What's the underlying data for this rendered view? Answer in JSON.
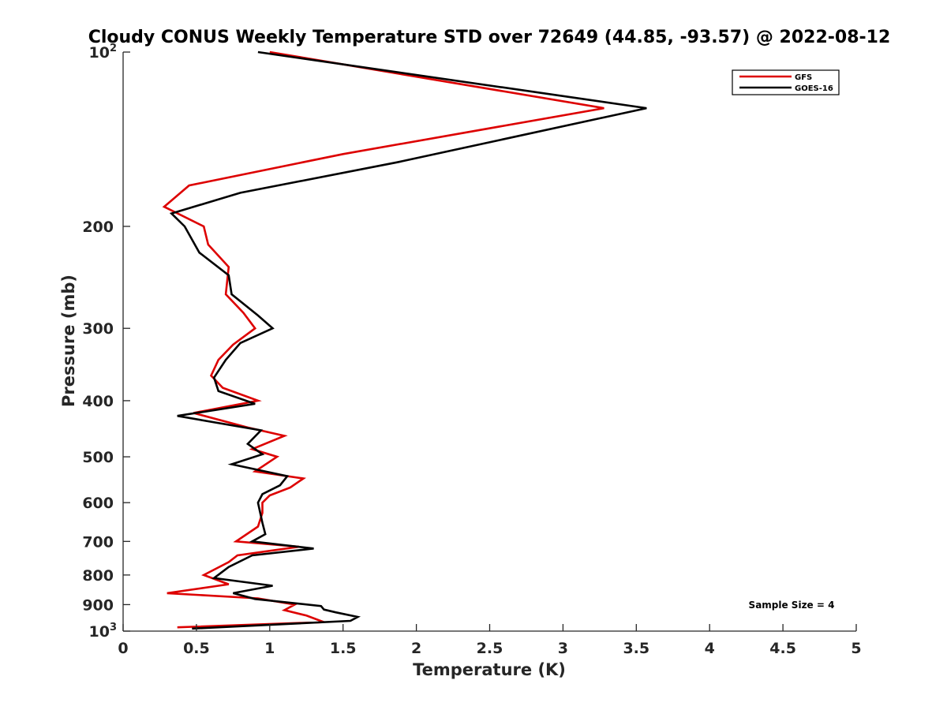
{
  "chart_data": {
    "type": "line",
    "title": "Cloudy CONUS Weekly Temperature STD over 72649 (44.85, -93.57) @ 2022-08-12",
    "xlabel": "Temperature (K)",
    "ylabel": "Pressure (mb)",
    "xlim": [
      0,
      5
    ],
    "ylim": [
      100,
      1000
    ],
    "y_scale": "log",
    "y_reversed": true,
    "x_ticks": [
      "0",
      "0.5",
      "1",
      "1.5",
      "2",
      "2.5",
      "3",
      "3.5",
      "4",
      "4.5",
      "5"
    ],
    "y_ticks": [
      {
        "value": 100,
        "base": "10",
        "exp": "2"
      },
      {
        "value": 200,
        "label": "200"
      },
      {
        "value": 300,
        "label": "300"
      },
      {
        "value": 400,
        "label": "400"
      },
      {
        "value": 500,
        "label": "500"
      },
      {
        "value": 600,
        "label": "600"
      },
      {
        "value": 700,
        "label": "700"
      },
      {
        "value": 800,
        "label": "800"
      },
      {
        "value": 900,
        "label": "900"
      },
      {
        "value": 1000,
        "base": "10",
        "exp": "3"
      }
    ],
    "legend_position": "top-right",
    "annotation": "Sample Size = 4",
    "series": [
      {
        "name": "GFS",
        "color": "#dd0000",
        "points": [
          [
            1.0,
            100
          ],
          [
            3.28,
            125
          ],
          [
            1.5,
            150
          ],
          [
            0.45,
            170
          ],
          [
            0.28,
            185
          ],
          [
            0.55,
            200
          ],
          [
            0.58,
            215
          ],
          [
            0.72,
            235
          ],
          [
            0.7,
            262
          ],
          [
            0.82,
            282
          ],
          [
            0.9,
            300
          ],
          [
            0.75,
            320
          ],
          [
            0.65,
            340
          ],
          [
            0.6,
            362
          ],
          [
            0.68,
            380
          ],
          [
            0.92,
            400
          ],
          [
            0.48,
            420
          ],
          [
            0.85,
            445
          ],
          [
            1.1,
            460
          ],
          [
            0.88,
            485
          ],
          [
            1.05,
            500
          ],
          [
            0.9,
            530
          ],
          [
            1.23,
            545
          ],
          [
            1.14,
            565
          ],
          [
            1.0,
            583
          ],
          [
            0.95,
            600
          ],
          [
            0.95,
            625
          ],
          [
            0.92,
            660
          ],
          [
            0.77,
            700
          ],
          [
            1.2,
            715
          ],
          [
            0.78,
            740
          ],
          [
            0.72,
            760
          ],
          [
            0.55,
            800
          ],
          [
            0.72,
            830
          ],
          [
            0.3,
            860
          ],
          [
            0.92,
            878
          ],
          [
            1.17,
            900
          ],
          [
            1.1,
            920
          ],
          [
            1.25,
            940
          ],
          [
            1.37,
            965
          ],
          [
            0.37,
            985
          ]
        ]
      },
      {
        "name": "GOES-16",
        "color": "#000000",
        "points": [
          [
            0.92,
            100
          ],
          [
            3.57,
            125
          ],
          [
            1.87,
            155
          ],
          [
            0.8,
            175
          ],
          [
            0.33,
            190
          ],
          [
            0.42,
            200
          ],
          [
            0.52,
            222
          ],
          [
            0.72,
            243
          ],
          [
            0.74,
            262
          ],
          [
            0.92,
            285
          ],
          [
            1.02,
            300
          ],
          [
            0.8,
            318
          ],
          [
            0.7,
            340
          ],
          [
            0.62,
            365
          ],
          [
            0.65,
            385
          ],
          [
            0.9,
            405
          ],
          [
            0.37,
            425
          ],
          [
            0.94,
            450
          ],
          [
            0.85,
            475
          ],
          [
            0.95,
            495
          ],
          [
            0.74,
            515
          ],
          [
            1.12,
            540
          ],
          [
            1.07,
            560
          ],
          [
            0.95,
            580
          ],
          [
            0.92,
            600
          ],
          [
            0.95,
            650
          ],
          [
            0.97,
            680
          ],
          [
            0.88,
            700
          ],
          [
            1.3,
            720
          ],
          [
            0.88,
            740
          ],
          [
            0.72,
            775
          ],
          [
            0.62,
            810
          ],
          [
            1.02,
            835
          ],
          [
            0.75,
            860
          ],
          [
            0.9,
            880
          ],
          [
            1.35,
            905
          ],
          [
            1.37,
            918
          ],
          [
            1.45,
            928
          ],
          [
            1.6,
            945
          ],
          [
            1.55,
            960
          ],
          [
            0.47,
            990
          ]
        ]
      }
    ]
  }
}
